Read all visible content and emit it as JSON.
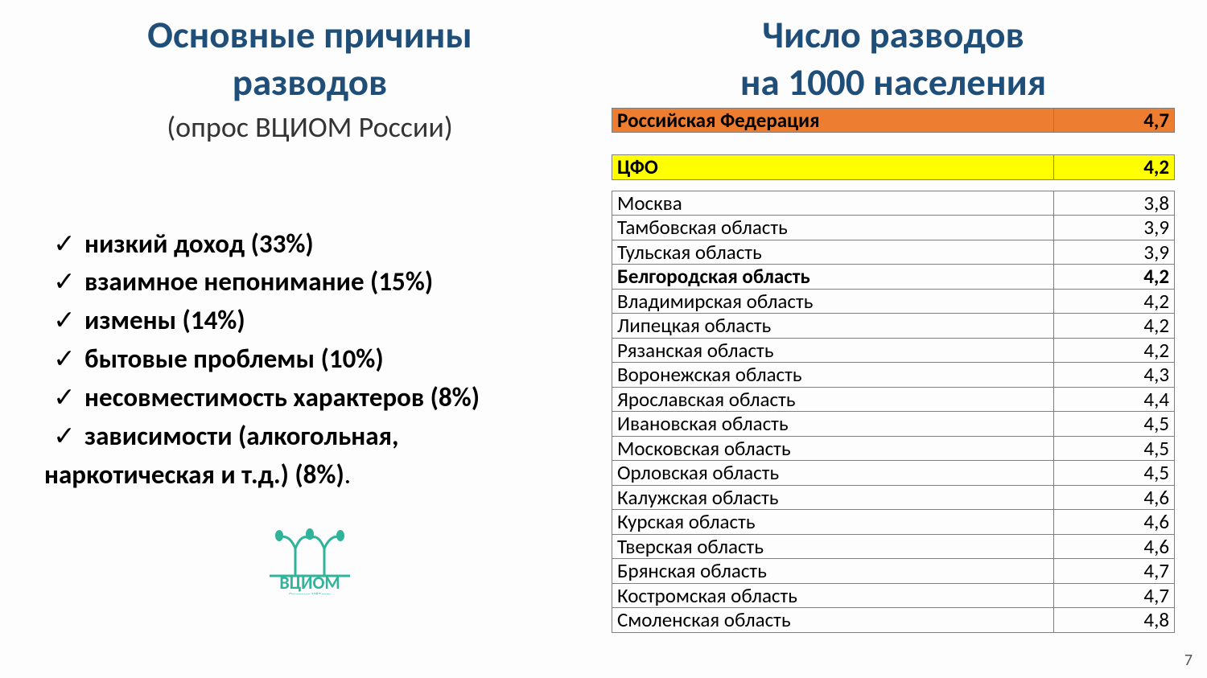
{
  "pageNumber": "7",
  "left": {
    "titleLine1": "Основные причины",
    "titleLine2": "разводов",
    "subtitle": "(опрос ВЦИОМ России)",
    "checkGlyph": "✓",
    "reasons": [
      "низкий доход (33%)",
      "взаимное непонимание (15%)",
      "измены (14%)",
      "бытовые проблемы (10%)",
      "несовместимость характеров (8%)",
      "зависимости (алкогольная,"
    ],
    "reasonWrap": "наркотическая и т.д.) (8%)",
    "trailingDot": ".",
    "logoText": "ВЦИОМ",
    "logoSub": "Основан в 1987 году",
    "logoColor": "#2fb39a",
    "textColor": "#000000",
    "titleColor": "#1f4e79"
  },
  "right": {
    "titleLine1": "Число разводов",
    "titleLine2": "на 1000 населения",
    "colors": {
      "rfBg": "#ed7d31",
      "cfoBg": "#ffff00",
      "border": "#7f7f7f"
    },
    "rfRow": {
      "name": "Российская Федерация",
      "value": "4,7"
    },
    "cfoRow": {
      "name": "ЦФО",
      "value": "4,2"
    },
    "boldRowIndex": 3,
    "rows": [
      {
        "name": "Москва",
        "value": "3,8"
      },
      {
        "name": "Тамбовская область",
        "value": "3,9"
      },
      {
        "name": "Тульская область",
        "value": "3,9"
      },
      {
        "name": "Белгородская область",
        "value": "4,2"
      },
      {
        "name": "Владимирская область",
        "value": "4,2"
      },
      {
        "name": "Липецкая область",
        "value": "4,2"
      },
      {
        "name": "Рязанская область",
        "value": "4,2"
      },
      {
        "name": "Воронежская область",
        "value": "4,3"
      },
      {
        "name": "Ярославская область",
        "value": "4,4"
      },
      {
        "name": "Ивановская область",
        "value": "4,5"
      },
      {
        "name": "Московская область",
        "value": "4,5"
      },
      {
        "name": "Орловская область",
        "value": "4,5"
      },
      {
        "name": "Калужская область",
        "value": "4,6"
      },
      {
        "name": "Курская область",
        "value": "4,6"
      },
      {
        "name": "Тверская область",
        "value": "4,6"
      },
      {
        "name": "Брянская область",
        "value": "4,7"
      },
      {
        "name": "Костромская область",
        "value": "4,7"
      },
      {
        "name": "Смоленская область",
        "value": "4,8"
      }
    ]
  }
}
